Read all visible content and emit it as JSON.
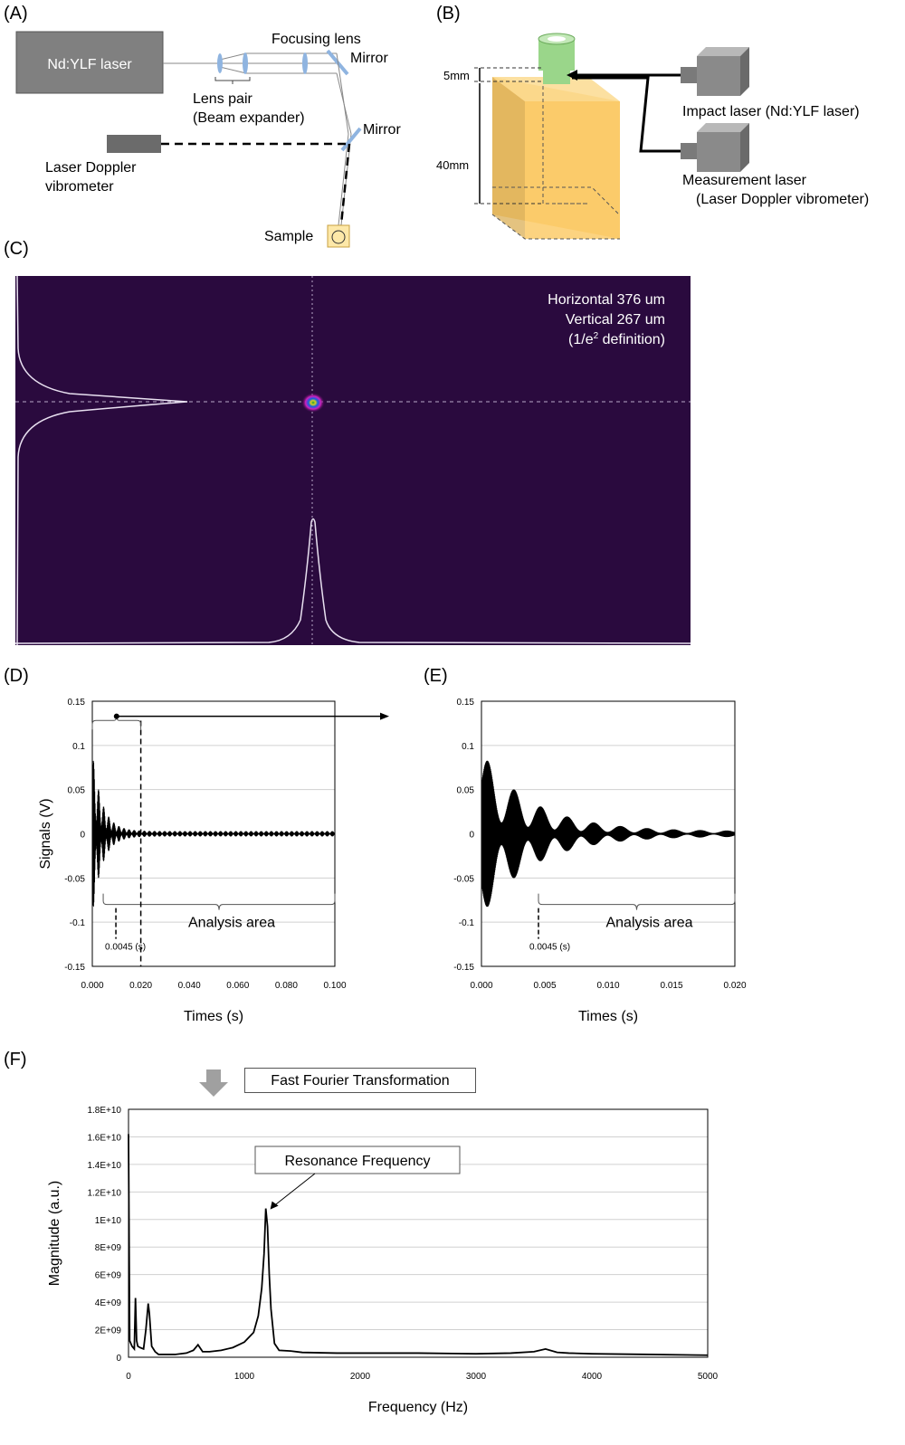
{
  "panels": {
    "a": {
      "label": "(A)",
      "laser_box": "Nd:YLF laser",
      "focusing_lens": "Focusing lens",
      "mirror1": "Mirror",
      "lens_pair_1": "Lens pair",
      "lens_pair_2": "(Beam expander)",
      "mirror2": "Mirror",
      "ldv_1": "Laser Doppler",
      "ldv_2": "vibrometer",
      "sample": "Sample",
      "colors": {
        "laser_box": "#808080",
        "ldv": "#6b6b6b",
        "lens": "#8fb4e0",
        "sample": "#fde8a8"
      }
    },
    "b": {
      "label": "(B)",
      "dim_5mm": "5mm",
      "dim_40mm": "40mm",
      "impact_laser": "Impact laser (Nd:YLF laser)",
      "measure_1": "Measurement laser",
      "measure_2": "(Laser Doppler vibrometer)",
      "colors": {
        "cuvette": "#f9c86a",
        "cap": "#9ad68a"
      }
    },
    "c": {
      "label": "(C)",
      "horizontal": "Horizontal 376 um",
      "vertical": "Vertical 267 um",
      "definition_pre": "(1/e",
      "definition_sup": "2",
      "definition_post": " definition)",
      "colors": {
        "background": "#2a0a3e",
        "profile": "#e8e0f0"
      }
    },
    "d": {
      "label": "(D)",
      "analysis": "Analysis area",
      "marker": "0.0045 (s)"
    },
    "e": {
      "label": "(E)",
      "analysis": "Analysis area",
      "marker": "0.0045 (s)"
    },
    "f": {
      "label": "(F)",
      "fft_box": "Fast Fourier Transformation",
      "resonance": "Resonance Frequency"
    }
  },
  "chart_data": [
    {
      "id": "D",
      "type": "line",
      "xlabel": "Times (s)",
      "ylabel": "Signals (V)",
      "xlim": [
        0,
        0.1
      ],
      "ylim": [
        -0.15,
        0.15
      ],
      "xticks": [
        "0.000",
        "0.020",
        "0.040",
        "0.060",
        "0.080",
        "0.100"
      ],
      "yticks": [
        "0.15",
        "0.1",
        "0.05",
        "0",
        "-0.05",
        "-0.1",
        "-0.15"
      ],
      "grid": true,
      "signal": {
        "initial_amplitude": 0.09,
        "decay_time": 0.004,
        "residual_amplitude": 0.003
      },
      "analysis_marker_x": 0.0045,
      "zoom_window_end": 0.02
    },
    {
      "id": "E",
      "type": "line",
      "xlabel": "Times (s)",
      "ylabel": "",
      "xlim": [
        0,
        0.02
      ],
      "ylim": [
        -0.15,
        0.15
      ],
      "xticks": [
        "0.000",
        "0.005",
        "0.010",
        "0.015",
        "0.020"
      ],
      "yticks": [
        "0.15",
        "0.1",
        "0.05",
        "0",
        "-0.05",
        "-0.1",
        "-0.15"
      ],
      "grid": true,
      "signal": {
        "initial_amplitude": 0.09,
        "decay_time": 0.004,
        "residual_amplitude": 0.003
      },
      "analysis_marker_x": 0.0045
    },
    {
      "id": "F",
      "type": "line",
      "xlabel": "Frequency (Hz)",
      "ylabel": "Magnitude (a.u.)",
      "xlim": [
        0,
        5000
      ],
      "ylim": [
        0,
        18000000000
      ],
      "xticks": [
        "0",
        "1000",
        "2000",
        "3000",
        "4000",
        "5000"
      ],
      "yticks": [
        "1.8E+10",
        "1.6E+10",
        "1.4E+10",
        "1.2E+10",
        "1E+10",
        "8E+09",
        "6E+09",
        "4E+09",
        "2E+09",
        "0"
      ],
      "grid": true,
      "x": [
        0,
        10,
        30,
        50,
        60,
        70,
        80,
        100,
        130,
        150,
        170,
        180,
        200,
        230,
        260,
        300,
        400,
        500,
        560,
        600,
        640,
        700,
        800,
        900,
        1000,
        1080,
        1120,
        1150,
        1170,
        1185,
        1200,
        1215,
        1230,
        1260,
        1300,
        1400,
        1500,
        1800,
        2000,
        2500,
        3000,
        3300,
        3500,
        3600,
        3700,
        3800,
        4000,
        4500,
        5000
      ],
      "y": [
        16200000000,
        1200000000,
        800000000,
        600000000,
        4300000000,
        1200000000,
        800000000,
        700000000,
        600000000,
        2000000000,
        3900000000,
        3200000000,
        800000000,
        400000000,
        200000000,
        200000000,
        200000000,
        300000000,
        500000000,
        900000000,
        400000000,
        400000000,
        500000000,
        700000000,
        1100000000,
        1800000000,
        3000000000,
        5000000000,
        7500000000,
        10800000000,
        9500000000,
        6000000000,
        3500000000,
        1000000000,
        500000000,
        450000000,
        350000000,
        300000000,
        300000000,
        300000000,
        250000000,
        300000000,
        400000000,
        600000000,
        350000000,
        300000000,
        250000000,
        200000000,
        150000000
      ],
      "annotation": {
        "x": 1200,
        "y": 10800000000
      }
    }
  ]
}
